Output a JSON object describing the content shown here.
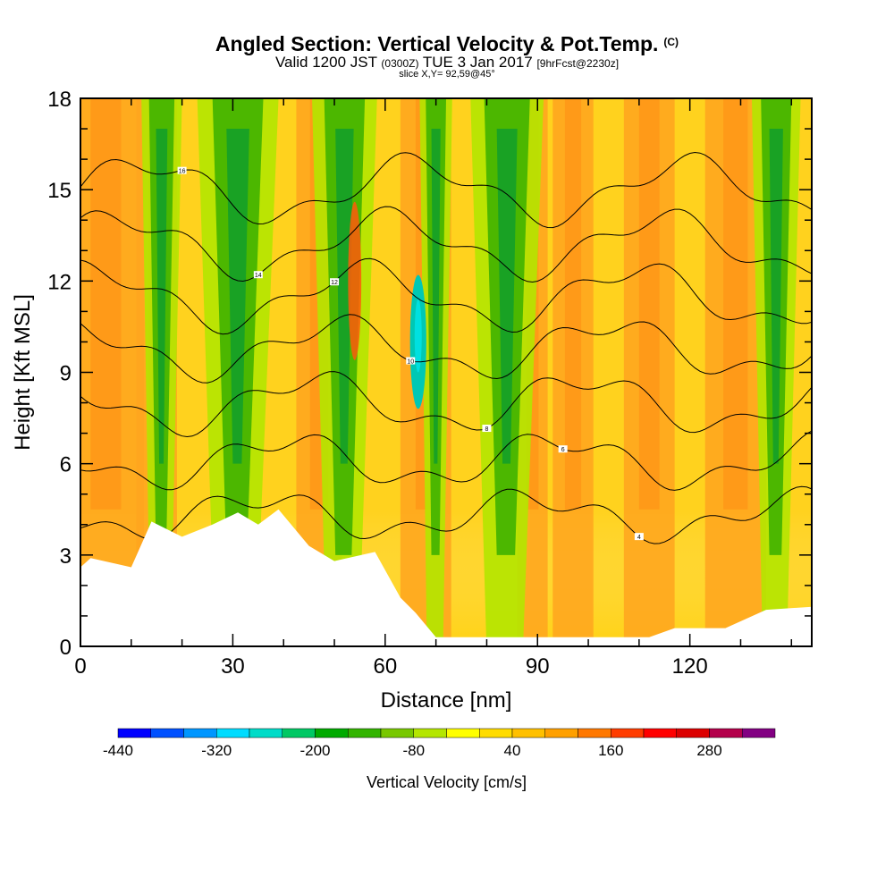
{
  "header": {
    "title": "Angled Section: Vertical Velocity & Pot.Temp.",
    "title_unit": "(C)",
    "valid_prefix": "Valid 1200 JST",
    "valid_utc": "(0300Z)",
    "valid_date": "TUE 3 Jan 2017",
    "forecast": "[9hrFcst@2230z]",
    "slice": "slice X,Y= 92,59@45°"
  },
  "chart_data": {
    "type": "heatmap",
    "title": "Angled Section: Vertical Velocity & Pot.Temp. (C)",
    "xlabel": "Distance [nm]",
    "ylabel": "Height [Kft MSL]",
    "xlim": [
      0,
      144
    ],
    "ylim": [
      0,
      18
    ],
    "x_ticks": [
      0,
      30,
      60,
      90,
      120
    ],
    "y_ticks": [
      0,
      3,
      6,
      9,
      12,
      15,
      18
    ],
    "colorbar": {
      "label": "Vertical Velocity [cm/s]",
      "tick_labels": [
        "-440",
        "-320",
        "-200",
        "-80",
        "40",
        "160",
        "280"
      ],
      "levels": [
        -440,
        -400,
        -360,
        -320,
        -280,
        -240,
        -200,
        -160,
        -120,
        -80,
        -40,
        0,
        40,
        80,
        120,
        160,
        200,
        240,
        280,
        320,
        360
      ],
      "colors": [
        "#0000ff",
        "#0050ff",
        "#0096ff",
        "#00dcff",
        "#00dcc8",
        "#00c864",
        "#00aa00",
        "#32b400",
        "#78c800",
        "#b4e600",
        "#ffff00",
        "#ffdc00",
        "#ffc000",
        "#ffa000",
        "#ff7800",
        "#ff3c00",
        "#ff0000",
        "#dc0000",
        "#b4004b",
        "#820082"
      ]
    },
    "updraft_bands": [
      {
        "x": 5,
        "w": 15
      },
      {
        "x": 15,
        "w": 8
      },
      {
        "x": 47,
        "w": 9
      },
      {
        "x": 68,
        "w": 10
      },
      {
        "x": 89,
        "w": 6
      },
      {
        "x": 97,
        "w": 8
      },
      {
        "x": 112,
        "w": 10
      },
      {
        "x": 129,
        "w": 12
      }
    ],
    "downdraft_bands": [
      {
        "x": 16,
        "w": 5
      },
      {
        "x": 31,
        "w": 10
      },
      {
        "x": 52,
        "w": 8
      },
      {
        "x": 70,
        "w": 4
      },
      {
        "x": 84,
        "w": 9
      },
      {
        "x": 137,
        "w": 6
      }
    ],
    "terrain_profile": [
      [
        0,
        2.6
      ],
      [
        2,
        2.9
      ],
      [
        10,
        2.6
      ],
      [
        14,
        4.1
      ],
      [
        20,
        3.6
      ],
      [
        26,
        4.0
      ],
      [
        31,
        4.4
      ],
      [
        35,
        4.0
      ],
      [
        39,
        4.5
      ],
      [
        45,
        3.3
      ],
      [
        50,
        2.8
      ],
      [
        58,
        3.1
      ],
      [
        63,
        1.6
      ],
      [
        66,
        1.1
      ],
      [
        70,
        0.3
      ],
      [
        92,
        0.3
      ],
      [
        112,
        0.3
      ],
      [
        117,
        0.6
      ],
      [
        127,
        0.6
      ],
      [
        135,
        1.2
      ],
      [
        144,
        1.3
      ]
    ],
    "isentropes": [
      {
        "base": 15,
        "ripple": 0.9,
        "label": "16"
      },
      {
        "base": 13.2,
        "ripple": 0.9,
        "label": "14"
      },
      {
        "base": 11.5,
        "ripple": 0.9,
        "label": "12"
      },
      {
        "base": 9.8,
        "ripple": 0.8,
        "label": "10"
      },
      {
        "base": 8.0,
        "ripple": 0.8,
        "label": "8"
      },
      {
        "base": 6.1,
        "ripple": 0.7,
        "label": "6"
      },
      {
        "base": 4.3,
        "ripple": 0.6,
        "label": "4"
      }
    ]
  }
}
